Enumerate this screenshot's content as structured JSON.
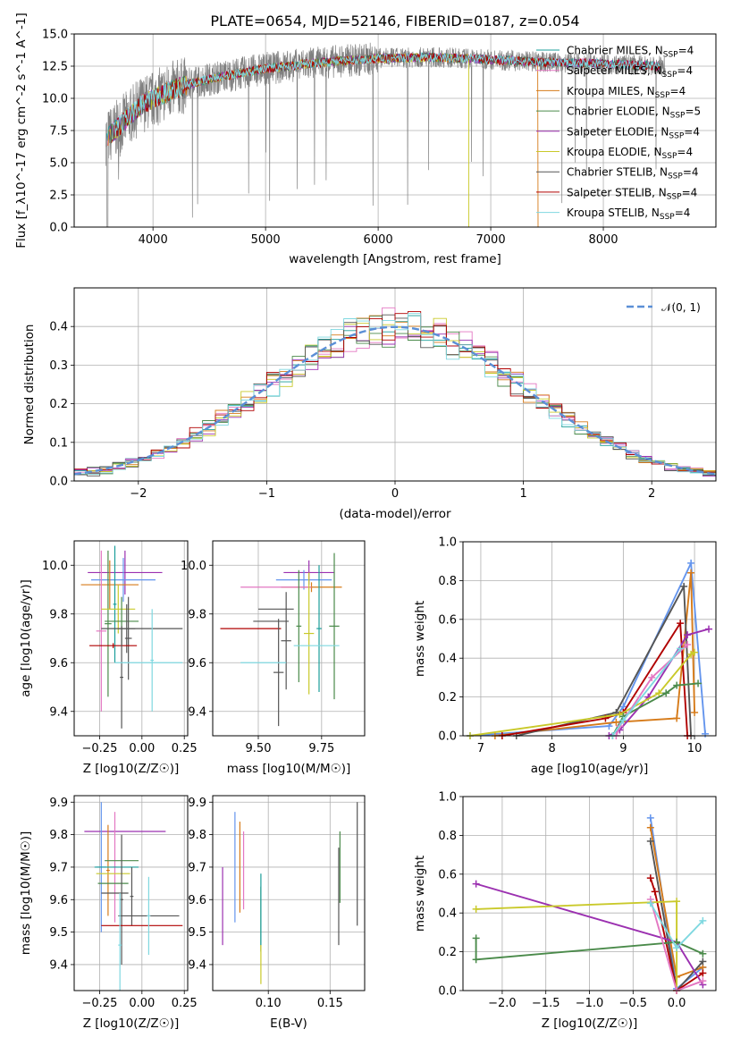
{
  "colors": {
    "palette": [
      "#1a9e9a",
      "#e377c2",
      "#d67b1a",
      "#4a8a4a",
      "#9b30b0",
      "#c9c92a",
      "#555555",
      "#b00000",
      "#7fd8e0"
    ],
    "extra": [
      "#6495ed",
      "#8a2be2",
      "#ff7f50"
    ]
  },
  "chart_data": [
    {
      "id": "spectrum",
      "type": "line",
      "title": "PLATE=0654, MJD=52146, FIBERID=0187, z=0.054",
      "xlabel": "wavelength [Angstrom, rest frame]",
      "ylabel": "Flux [f_λ10^-17 erg cm^-2 s^-1 A^-1]",
      "xlim": [
        3300,
        9000
      ],
      "ylim": [
        0,
        15
      ],
      "xticks": [
        "4000",
        "5000",
        "6000",
        "7000",
        "8000"
      ],
      "yticks": [
        "0.0",
        "2.5",
        "5.0",
        "7.5",
        "10.0",
        "12.5",
        "15.0"
      ],
      "series": [
        {
          "name": "Chabrier MILES, N_SSP=4"
        },
        {
          "name": "Salpeter MILES, N_SSP=4"
        },
        {
          "name": "Kroupa MILES, N_SSP=4"
        },
        {
          "name": "Chabrier ELODIE, N_SSP=5"
        },
        {
          "name": "Salpeter ELODIE, N_SSP=4"
        },
        {
          "name": "Kroupa ELODIE, N_SSP=4"
        },
        {
          "name": "Chabrier STELIB, N_SSP=4"
        },
        {
          "name": "Salpeter STELIB, N_SSP=4"
        },
        {
          "name": "Kroupa STELIB, N_SSP=4"
        }
      ],
      "continuum": {
        "x": [
          3600,
          3900,
          4200,
          4500,
          5000,
          5500,
          6000,
          6500,
          7000,
          7500,
          8000,
          8500
        ],
        "y": [
          7.0,
          9.5,
          10.8,
          11.5,
          12.3,
          12.8,
          13.1,
          13.2,
          13.0,
          12.8,
          12.7,
          12.5
        ]
      },
      "legend": "right"
    },
    {
      "id": "residuals",
      "type": "histogram",
      "xlabel": "(data-model)/error",
      "ylabel": "Normed distribution",
      "xlim": [
        -2.5,
        2.5
      ],
      "ylim": [
        0,
        0.5
      ],
      "xticks": [
        "−2",
        "−1",
        "0",
        "1",
        "2"
      ],
      "yticks": [
        "0.0",
        "0.1",
        "0.2",
        "0.3",
        "0.4"
      ],
      "bin_edges_start": -2.5,
      "bin_width": 0.1,
      "reference": {
        "name": "𝒩(0, 1)",
        "color": "#5b8fd6"
      },
      "legend": "top-right"
    },
    {
      "id": "age-vs-Z",
      "type": "errorbar",
      "xlabel": "Z [log10(Z/Z☉)]",
      "ylabel": "age  [log10(age/yr)]",
      "xlim": [
        -0.4,
        0.27
      ],
      "ylim": [
        9.3,
        10.1
      ],
      "xticks": [
        "−0.25",
        "0.00",
        "0.25"
      ],
      "yticks": [
        "9.4",
        "9.6",
        "9.8",
        "10.0"
      ],
      "points": [
        {
          "x": -0.1,
          "y": 9.97,
          "xe": 0.22,
          "ye": 0.09
        },
        {
          "x": -0.11,
          "y": 9.94,
          "xe": 0.19,
          "ye": 0.09
        },
        {
          "x": -0.19,
          "y": 9.92,
          "xe": 0.17,
          "ye": 0.1
        },
        {
          "x": -0.24,
          "y": 9.73,
          "xe": 0.03,
          "ye": 0.33
        },
        {
          "x": -0.2,
          "y": 9.76,
          "xe": 0.02,
          "ye": 0.3
        },
        {
          "x": -0.16,
          "y": 9.84,
          "xe": 0.01,
          "ye": 0.24
        },
        {
          "x": -0.14,
          "y": 9.82,
          "xe": 0.1,
          "ye": 0.1
        },
        {
          "x": -0.12,
          "y": 9.77,
          "xe": 0.1,
          "ye": 0.1
        },
        {
          "x": -0.09,
          "y": 9.74,
          "xe": 0.05,
          "ye": 0.1
        },
        {
          "x": -0.08,
          "y": 9.7,
          "xe": 0.02,
          "ye": 0.17
        },
        {
          "x": 0.0,
          "y": 9.74,
          "xe": 0.24,
          "ye": 0.0
        },
        {
          "x": -0.17,
          "y": 9.67,
          "xe": 0.14,
          "ye": 0.01
        },
        {
          "x": -0.12,
          "y": 9.54,
          "xe": 0.01,
          "ye": 0.21
        },
        {
          "x": 0.06,
          "y": 9.61,
          "xe": 0.01,
          "ye": 0.21
        },
        {
          "x": 0.04,
          "y": 9.6,
          "xe": 0.2,
          "ye": 0.0
        }
      ]
    },
    {
      "id": "age-vs-mass",
      "type": "errorbar",
      "xlabel": "mass [log10(M/M☉)]",
      "ylabel": "",
      "xlim": [
        9.32,
        9.92
      ],
      "ylim": [
        9.3,
        10.1
      ],
      "xticks": [
        "9.50",
        "9.75"
      ],
      "yticks": [
        "9.4",
        "9.6",
        "9.8",
        "10.0"
      ],
      "points": [
        {
          "x": 9.7,
          "y": 9.97,
          "xe": 0.1,
          "ye": 0.05
        },
        {
          "x": 9.68,
          "y": 9.94,
          "xe": 0.11,
          "ye": 0.04
        },
        {
          "x": 9.71,
          "y": 9.91,
          "xe": 0.12,
          "ye": 0.02
        },
        {
          "x": 9.57,
          "y": 9.91,
          "xe": 0.14,
          "ye": 0.0
        },
        {
          "x": 9.8,
          "y": 9.75,
          "xe": 0.02,
          "ye": 0.3
        },
        {
          "x": 9.74,
          "y": 9.74,
          "xe": 0.01,
          "ye": 0.26
        },
        {
          "x": 9.7,
          "y": 9.72,
          "xe": 0.02,
          "ye": 0.25
        },
        {
          "x": 9.66,
          "y": 9.75,
          "xe": 0.01,
          "ye": 0.23
        },
        {
          "x": 9.61,
          "y": 9.69,
          "xe": 0.02,
          "ye": 0.2
        },
        {
          "x": 9.57,
          "y": 9.82,
          "xe": 0.07,
          "ye": 0.0
        },
        {
          "x": 9.55,
          "y": 9.77,
          "xe": 0.07,
          "ye": 0.0
        },
        {
          "x": 9.47,
          "y": 9.74,
          "xe": 0.12,
          "ye": 0.0
        },
        {
          "x": 9.58,
          "y": 9.56,
          "xe": 0.02,
          "ye": 0.22
        },
        {
          "x": 9.73,
          "y": 9.67,
          "xe": 0.09,
          "ye": 0.0
        },
        {
          "x": 9.52,
          "y": 9.6,
          "xe": 0.09,
          "ye": 0.0
        }
      ]
    },
    {
      "id": "massweight-vs-age",
      "type": "line",
      "xlabel": "age  [log10(age/yr)]",
      "ylabel": "mass weight",
      "xlim": [
        6.75,
        10.3
      ],
      "ylim": [
        0,
        1
      ],
      "xticks": [
        "7",
        "8",
        "9",
        "10"
      ],
      "yticks": [
        "0.0",
        "0.2",
        "0.4",
        "0.6",
        "0.8",
        "1.0"
      ],
      "series": [
        {
          "color_ref": 9,
          "x": [
            6.85,
            8.8,
            9.0,
            9.95,
            10.15
          ],
          "y": [
            0.0,
            0.05,
            0.15,
            0.89,
            0.01
          ]
        },
        {
          "color_ref": 2,
          "x": [
            7.2,
            8.9,
            9.75,
            9.95,
            10.0
          ],
          "y": [
            0.0,
            0.07,
            0.09,
            0.84,
            0.12
          ]
        },
        {
          "color_ref": 6,
          "x": [
            7.5,
            8.9,
            9.85,
            9.95
          ],
          "y": [
            0.0,
            0.12,
            0.77,
            0.0
          ]
        },
        {
          "color_ref": 7,
          "x": [
            7.3,
            8.75,
            9.0,
            9.8,
            9.9
          ],
          "y": [
            0.0,
            0.09,
            0.12,
            0.58,
            0.0
          ]
        },
        {
          "color_ref": 4,
          "x": [
            8.8,
            8.95,
            9.35,
            9.9,
            10.2
          ],
          "y": [
            0.0,
            0.03,
            0.2,
            0.52,
            0.55
          ]
        },
        {
          "color_ref": 5,
          "x": [
            6.85,
            8.95,
            9.5,
            9.95,
            10.0
          ],
          "y": [
            0.0,
            0.11,
            0.22,
            0.42,
            0.43
          ]
        },
        {
          "color_ref": 3,
          "x": [
            8.85,
            9.0,
            9.6,
            9.75,
            10.05
          ],
          "y": [
            0.0,
            0.1,
            0.22,
            0.26,
            0.27
          ]
        },
        {
          "color_ref": 1,
          "x": [
            8.9,
            8.95,
            9.4,
            9.9
          ],
          "y": [
            0.0,
            0.05,
            0.3,
            0.47
          ]
        },
        {
          "color_ref": 8,
          "x": [
            8.85,
            9.0,
            9.8
          ],
          "y": [
            0.0,
            0.08,
            0.45
          ]
        }
      ]
    },
    {
      "id": "mass-vs-Z",
      "type": "errorbar",
      "xlabel": "Z [log10(Z/Z☉)]",
      "ylabel": "mass [log10(M/M☉)]",
      "xlim": [
        -0.4,
        0.27
      ],
      "ylim": [
        9.32,
        9.92
      ],
      "xticks": [
        "−0.25",
        "0.00",
        "0.25"
      ],
      "yticks": [
        "9.4",
        "9.5",
        "9.6",
        "9.7",
        "9.8",
        "9.9"
      ],
      "points": [
        {
          "x": -0.1,
          "y": 9.81,
          "xe": 0.24,
          "ye": 0.0
        },
        {
          "x": -0.24,
          "y": 9.7,
          "xe": 0.03,
          "ye": 0.2
        },
        {
          "x": -0.2,
          "y": 9.69,
          "xe": 0.01,
          "ye": 0.14
        },
        {
          "x": -0.16,
          "y": 9.7,
          "xe": 0.01,
          "ye": 0.17
        },
        {
          "x": -0.12,
          "y": 9.72,
          "xe": 0.1,
          "ye": 0.0
        },
        {
          "x": -0.15,
          "y": 9.7,
          "xe": 0.13,
          "ye": 0.0
        },
        {
          "x": -0.17,
          "y": 9.68,
          "xe": 0.1,
          "ye": 0.0
        },
        {
          "x": -0.17,
          "y": 9.65,
          "xe": 0.09,
          "ye": 0.0
        },
        {
          "x": -0.16,
          "y": 9.62,
          "xe": 0.08,
          "ye": 0.0
        },
        {
          "x": -0.06,
          "y": 9.61,
          "xe": 0.01,
          "ye": 0.09
        },
        {
          "x": -0.12,
          "y": 9.6,
          "xe": 0.01,
          "ye": 0.2
        },
        {
          "x": 0.0,
          "y": 9.52,
          "xe": 0.24,
          "ye": 0.0
        },
        {
          "x": 0.04,
          "y": 9.55,
          "xe": 0.18,
          "ye": 0.0
        },
        {
          "x": 0.04,
          "y": 9.55,
          "xe": 0.01,
          "ye": 0.12
        },
        {
          "x": -0.13,
          "y": 9.46,
          "xe": 0.01,
          "ye": 0.16
        }
      ]
    },
    {
      "id": "mass-vs-EBV",
      "type": "errorbar",
      "xlabel": "E(B-V)",
      "ylabel": "",
      "xlim": [
        0.055,
        0.178
      ],
      "ylim": [
        9.32,
        9.92
      ],
      "xticks": [
        "0.10",
        "0.15"
      ],
      "yticks": [
        "9.4",
        "9.5",
        "9.6",
        "9.7",
        "9.8",
        "9.9"
      ],
      "points": [
        {
          "x": 0.063,
          "y": 9.58,
          "xe": 0,
          "ye": 0.12
        },
        {
          "x": 0.073,
          "y": 9.7,
          "xe": 0,
          "ye": 0.17
        },
        {
          "x": 0.077,
          "y": 9.7,
          "xe": 0,
          "ye": 0.14
        },
        {
          "x": 0.08,
          "y": 9.69,
          "xe": 0,
          "ye": 0.12
        },
        {
          "x": 0.094,
          "y": 9.54,
          "xe": 0,
          "ye": 0.1
        },
        {
          "x": 0.094,
          "y": 9.57,
          "xe": 0,
          "ye": 0.11
        },
        {
          "x": 0.094,
          "y": 9.4,
          "xe": 0,
          "ye": 0.06
        },
        {
          "x": 0.158,
          "y": 9.7,
          "xe": 0,
          "ye": 0.11
        },
        {
          "x": 0.157,
          "y": 9.61,
          "xe": 0,
          "ye": 0.15
        },
        {
          "x": 0.172,
          "y": 9.71,
          "xe": 0,
          "ye": 0.19
        }
      ]
    },
    {
      "id": "massweight-vs-Z",
      "type": "line",
      "xlabel": "Z [log10(Z/Z☉)]",
      "ylabel": "mass weight",
      "xlim": [
        -2.45,
        0.45
      ],
      "ylim": [
        0,
        1
      ],
      "xticks": [
        "−2.0",
        "−1.5",
        "−1.0",
        "−0.5",
        "0.0"
      ],
      "yticks": [
        "0.0",
        "0.2",
        "0.4",
        "0.6",
        "0.8",
        "1.0"
      ],
      "series": [
        {
          "color_ref": 9,
          "x": [
            -0.3,
            0.0,
            0.3
          ],
          "y": [
            0.89,
            0.01,
            0.12
          ]
        },
        {
          "color_ref": 2,
          "x": [
            -0.3,
            0.0,
            0.3
          ],
          "y": [
            0.84,
            0.07,
            0.12
          ]
        },
        {
          "color_ref": 6,
          "x": [
            -0.3,
            0.0,
            0.3
          ],
          "y": [
            0.77,
            0.0,
            0.15
          ]
        },
        {
          "color_ref": 7,
          "x": [
            -0.3,
            -0.25,
            0.0,
            0.3
          ],
          "y": [
            0.58,
            0.51,
            0.0,
            0.09
          ]
        },
        {
          "color_ref": 4,
          "x": [
            -2.3,
            0.0,
            0.3
          ],
          "y": [
            0.55,
            0.25,
            0.03
          ]
        },
        {
          "color_ref": 5,
          "x": [
            -2.3,
            0.0,
            0.0
          ],
          "y": [
            0.42,
            0.46,
            0.0
          ]
        },
        {
          "color_ref": 3,
          "x": [
            -2.3,
            -2.3,
            0.0,
            0.3
          ],
          "y": [
            0.27,
            0.16,
            0.25,
            0.19
          ]
        },
        {
          "color_ref": 1,
          "x": [
            -0.3,
            0.0,
            0.3
          ],
          "y": [
            0.47,
            0.0,
            0.05
          ]
        },
        {
          "color_ref": 8,
          "x": [
            -0.3,
            0.0,
            0.3
          ],
          "y": [
            0.45,
            0.22,
            0.36
          ]
        }
      ]
    }
  ]
}
